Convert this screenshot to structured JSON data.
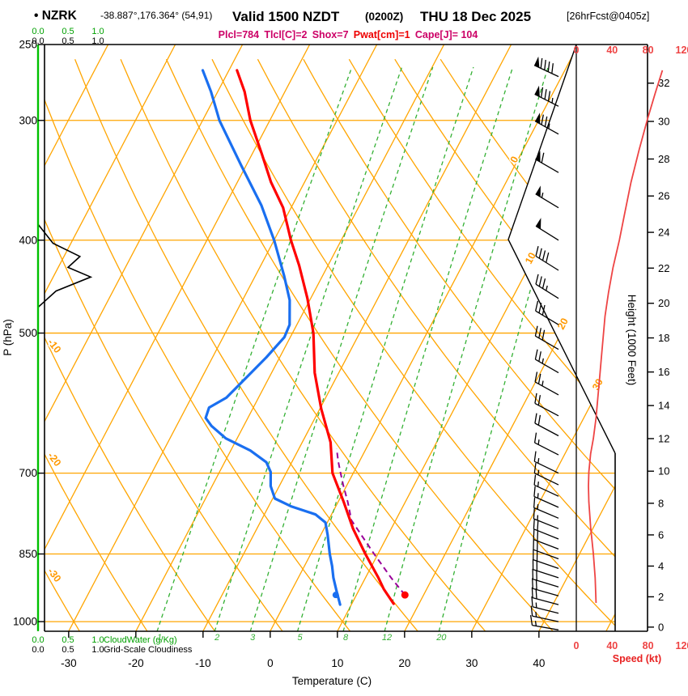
{
  "header": {
    "station": "• NZRK",
    "coords": "-38.887°,176.364° (54,91)",
    "valid": "Valid 1500 NZDT",
    "valid_z": "(0200Z)",
    "date": "THU 18 Dec 2025",
    "fcst": "[26hrFcst@0405z]",
    "params": [
      {
        "text": "Plcl=784",
        "color": "#cc0066"
      },
      {
        "text": "Tlcl[C]=2",
        "color": "#cc0066"
      },
      {
        "text": "Shox=7",
        "color": "#cc0066"
      },
      {
        "text": "Pwat[cm]=1",
        "color": "#ee0000"
      },
      {
        "text": "Cape[J]= 104",
        "color": "#cc0066"
      }
    ]
  },
  "axes": {
    "pressure_label": "P (hPa)",
    "pressure_ticks": [
      250,
      300,
      400,
      500,
      700,
      850,
      1000
    ],
    "temp_label": "Temperature (C)",
    "temp_ticks": [
      -30,
      -20,
      -10,
      0,
      10,
      20,
      30,
      40
    ],
    "height_label": "Height (1000 Feet)",
    "height_ticks": [
      0,
      2,
      4,
      6,
      8,
      10,
      12,
      14,
      16,
      18,
      20,
      22,
      24,
      26,
      28,
      30,
      32
    ],
    "speed_label": "Speed (kt)",
    "speed_ticks": [
      0,
      40,
      80,
      120
    ],
    "cloudwater_label": "CloudWater (g/Kg)",
    "cloudiness_label": "Grid-Scale Cloudiness",
    "cloud_scale_ticks": [
      "0.0",
      "0.5",
      "1.0"
    ],
    "dry_adiabat_labels": [
      -10,
      -20,
      -30
    ],
    "isotherm_labels": [
      0,
      10,
      20,
      30
    ],
    "mixing_ratio_labels": [
      1,
      2,
      3,
      5,
      8,
      12,
      20
    ]
  },
  "colors": {
    "grid": "#ffa500",
    "grid_label": "#ff9900",
    "mixing": "#33b033",
    "cloudwater": "#00c000",
    "cloudiness": "#000000",
    "temperature": "#ff0000",
    "dewpoint": "#1a6ff0",
    "parcel": "#990099",
    "speed": "#ee4444",
    "barb": "#000000"
  },
  "chart_data": {
    "type": "skewt",
    "pressure_range": [
      250,
      1024
    ],
    "temp_axis_range": [
      -33,
      52
    ],
    "temperature_profile": [
      [
        958,
        16.2
      ],
      [
        925,
        13.6
      ],
      [
        900,
        11.9
      ],
      [
        850,
        8.1
      ],
      [
        800,
        4.3
      ],
      [
        750,
        0.8
      ],
      [
        700,
        -3.1
      ],
      [
        650,
        -5.8
      ],
      [
        600,
        -9.8
      ],
      [
        550,
        -13.6
      ],
      [
        500,
        -16.9
      ],
      [
        460,
        -20.5
      ],
      [
        425,
        -24.3
      ],
      [
        400,
        -27.5
      ],
      [
        370,
        -31.2
      ],
      [
        348,
        -35.0
      ],
      [
        325,
        -38.6
      ],
      [
        300,
        -42.9
      ],
      [
        280,
        -46.0
      ],
      [
        266,
        -48.8
      ]
    ],
    "dewpoint_profile": [
      [
        960,
        8.3
      ],
      [
        927,
        6.6
      ],
      [
        900,
        5.2
      ],
      [
        875,
        4.1
      ],
      [
        850,
        2.8
      ],
      [
        812,
        1.0
      ],
      [
        788,
        -0.3
      ],
      [
        773,
        -2.4
      ],
      [
        758,
        -6.7
      ],
      [
        744,
        -9.7
      ],
      [
        722,
        -11.3
      ],
      [
        698,
        -12.4
      ],
      [
        682,
        -13.8
      ],
      [
        663,
        -17.1
      ],
      [
        644,
        -21.7
      ],
      [
        625,
        -24.8
      ],
      [
        613,
        -26.3
      ],
      [
        598,
        -26.6
      ],
      [
        584,
        -24.8
      ],
      [
        562,
        -23.7
      ],
      [
        530,
        -22.0
      ],
      [
        505,
        -20.9
      ],
      [
        490,
        -21.1
      ],
      [
        462,
        -23.0
      ],
      [
        436,
        -25.7
      ],
      [
        400,
        -30.0
      ],
      [
        368,
        -34.6
      ],
      [
        334,
        -40.8
      ],
      [
        300,
        -47.5
      ],
      [
        280,
        -51.0
      ],
      [
        266,
        -53.9
      ]
    ],
    "parcel_profile": [
      [
        938,
        17.2
      ],
      [
        900,
        13.8
      ],
      [
        850,
        9.4
      ],
      [
        800,
        4.9
      ],
      [
        784,
        3.4
      ],
      [
        750,
        1.4
      ],
      [
        720,
        -0.6
      ],
      [
        700,
        -1.9
      ],
      [
        680,
        -3.2
      ],
      [
        660,
        -4.4
      ]
    ],
    "surface_temp_dot": [
      938,
      17.2
    ],
    "surface_dewpoint_dot": [
      938,
      6.9
    ],
    "speed_profile": [
      [
        956,
        22
      ],
      [
        900,
        21
      ],
      [
        850,
        19
      ],
      [
        797,
        16
      ],
      [
        750,
        14
      ],
      [
        722,
        13.5
      ],
      [
        698,
        14
      ],
      [
        668,
        16
      ],
      [
        644,
        19
      ],
      [
        613,
        22
      ],
      [
        584,
        24
      ],
      [
        557,
        26
      ],
      [
        530,
        28
      ],
      [
        505,
        30
      ],
      [
        480,
        32
      ],
      [
        453,
        36
      ],
      [
        427,
        41
      ],
      [
        400,
        48
      ],
      [
        375,
        54
      ],
      [
        348,
        61
      ],
      [
        322,
        70
      ],
      [
        300,
        79
      ],
      [
        281,
        88
      ],
      [
        266,
        96
      ]
    ],
    "wind_barbs": [
      [
        1020,
        15,
        280
      ],
      [
        1000,
        15,
        282
      ],
      [
        980,
        17,
        284
      ],
      [
        960,
        18,
        285
      ],
      [
        940,
        19,
        286
      ],
      [
        920,
        20,
        287
      ],
      [
        900,
        20,
        288
      ],
      [
        880,
        21,
        289
      ],
      [
        860,
        20,
        290
      ],
      [
        840,
        19,
        291
      ],
      [
        820,
        18,
        292
      ],
      [
        800,
        16,
        292
      ],
      [
        780,
        15,
        293
      ],
      [
        760,
        14,
        294
      ],
      [
        740,
        14,
        295
      ],
      [
        720,
        14,
        296
      ],
      [
        700,
        14,
        296
      ],
      [
        670,
        15,
        297
      ],
      [
        640,
        18,
        298
      ],
      [
        610,
        21,
        298
      ],
      [
        580,
        24,
        299
      ],
      [
        550,
        26,
        300
      ],
      [
        520,
        28,
        300
      ],
      [
        490,
        31,
        301
      ],
      [
        460,
        34,
        302
      ],
      [
        430,
        40,
        302
      ],
      [
        400,
        48,
        302
      ],
      [
        370,
        55,
        301
      ],
      [
        340,
        62,
        300
      ],
      [
        310,
        75,
        299
      ],
      [
        290,
        85,
        297
      ],
      [
        270,
        92,
        295
      ]
    ],
    "cloudwater_profile": [
      [
        250,
        0
      ],
      [
        1023,
        0
      ]
    ],
    "cloudiness_profile": [
      [
        250,
        0
      ],
      [
        385,
        0
      ],
      [
        403,
        0.25
      ],
      [
        416,
        0.7
      ],
      [
        427,
        0.5
      ],
      [
        437,
        0.88
      ],
      [
        452,
        0.3
      ],
      [
        470,
        0
      ],
      [
        1023,
        0
      ]
    ]
  }
}
